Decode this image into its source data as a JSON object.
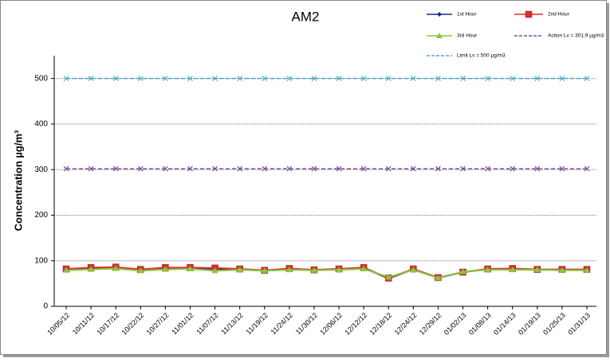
{
  "chart_data": {
    "type": "line",
    "title": "AM2",
    "y_label": "Concentration µg/m³",
    "categories": [
      "10/05/12",
      "10/11/12",
      "10/17/12",
      "10/22/12",
      "10/27/12",
      "11/01/12",
      "11/07/12",
      "11/13/12",
      "11/19/12",
      "11/24/12",
      "11/30/12",
      "12/06/12",
      "12/12/12",
      "12/18/12",
      "12/24/12",
      "12/29/12",
      "01/02/13",
      "01/08/13",
      "01/14/13",
      "01/19/13",
      "01/25/13",
      "01/31/13"
    ],
    "series": [
      {
        "name": "1st Hour",
        "color": "#1f2a8c",
        "marker": "diamond",
        "dashed": false,
        "values": [
          81,
          83,
          85,
          80,
          83,
          84,
          82,
          81,
          78,
          82,
          80,
          81,
          84,
          61,
          81,
          62,
          75,
          81,
          82,
          80,
          80,
          80
        ]
      },
      {
        "name": "2nd Hour",
        "color": "#d9312b",
        "marker": "square",
        "dashed": false,
        "values": [
          82,
          85,
          86,
          81,
          85,
          85,
          84,
          82,
          79,
          83,
          80,
          82,
          85,
          62,
          82,
          63,
          75,
          82,
          83,
          81,
          81,
          81
        ]
      },
      {
        "name": "3rd Hour",
        "color": "#8cc63f",
        "marker": "triangle",
        "dashed": false,
        "values": [
          79,
          81,
          83,
          78,
          81,
          82,
          78,
          80,
          78,
          80,
          79,
          80,
          82,
          64,
          80,
          62,
          76,
          80,
          80,
          80,
          79,
          79
        ]
      },
      {
        "name": "Action Lv = 301.9 µg/m3",
        "color": "#7a4fa0",
        "marker": "x",
        "dashed": true,
        "values": [
          301.9,
          301.9,
          301.9,
          301.9,
          301.9,
          301.9,
          301.9,
          301.9,
          301.9,
          301.9,
          301.9,
          301.9,
          301.9,
          301.9,
          301.9,
          301.9,
          301.9,
          301.9,
          301.9,
          301.9,
          301.9,
          301.9
        ]
      },
      {
        "name": "Limit Lv = 500 µg/m3",
        "color": "#4bacc6",
        "marker": "x",
        "dashed": true,
        "values": [
          500,
          500,
          500,
          500,
          500,
          500,
          500,
          500,
          500,
          500,
          500,
          500,
          500,
          500,
          500,
          500,
          500,
          500,
          500,
          500,
          500,
          500
        ]
      }
    ],
    "ylim": [
      0,
      550
    ],
    "yticks": [
      0,
      100,
      200,
      300,
      400,
      500
    ],
    "grid": true,
    "legend": "top-right"
  }
}
